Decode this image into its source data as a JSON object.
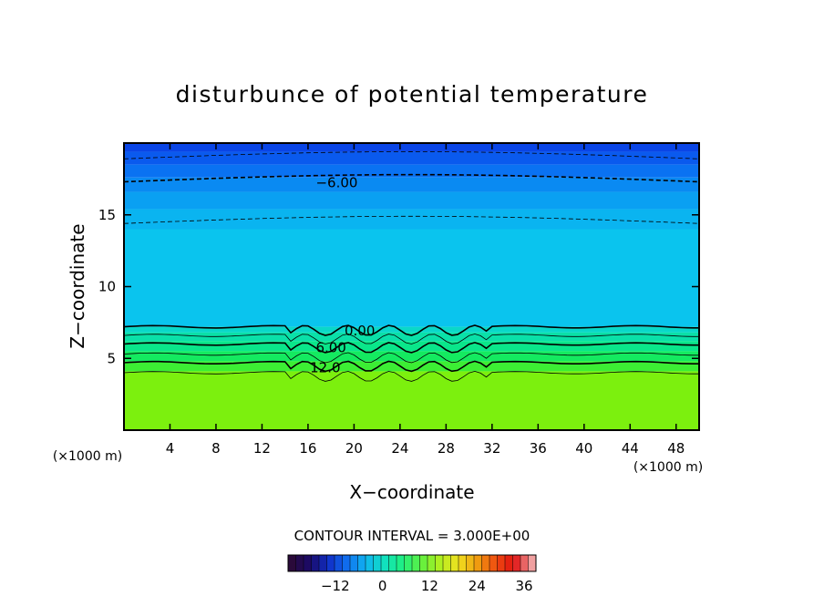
{
  "chart_data": {
    "type": "heatmap",
    "title": "disturbunce of potential temperature",
    "xlabel": "X−coordinate",
    "ylabel": "Z−coordinate",
    "x_unit_left": "(×1000 m)",
    "x_unit_right": "(×1000 m)",
    "xlim": [
      0,
      50
    ],
    "ylim": [
      0,
      20
    ],
    "x_ticks": [
      "4",
      "8",
      "12",
      "16",
      "20",
      "24",
      "28",
      "32",
      "36",
      "40",
      "44",
      "48"
    ],
    "x_tick_values": [
      4,
      8,
      12,
      16,
      20,
      24,
      28,
      32,
      36,
      40,
      44,
      48
    ],
    "y_ticks": [
      "5",
      "10",
      "15"
    ],
    "y_tick_values": [
      5,
      10,
      15
    ],
    "contour_labels": [
      {
        "text": "−6.00",
        "x": 18.5,
        "z": 17.3
      },
      {
        "text": "0.00",
        "x": 20.5,
        "z": 7.0
      },
      {
        "text": "6.00",
        "x": 18.0,
        "z": 5.8
      },
      {
        "text": "12.0",
        "x": 17.5,
        "z": 4.4
      }
    ],
    "layers": [
      {
        "z_bottom": 19.4,
        "z_top": 20.0,
        "color": "#0a45e6"
      },
      {
        "z_bottom": 18.5,
        "z_top": 19.4,
        "color": "#0a5aee"
      },
      {
        "z_bottom": 17.6,
        "z_top": 18.5,
        "color": "#0a72f2"
      },
      {
        "z_bottom": 16.6,
        "z_top": 17.6,
        "color": "#0a8af2"
      },
      {
        "z_bottom": 15.4,
        "z_top": 16.6,
        "color": "#0aa0f2"
      },
      {
        "z_bottom": 14.0,
        "z_top": 15.4,
        "color": "#0ab4f0"
      },
      {
        "z_bottom": 7.2,
        "z_top": 14.0,
        "color": "#0ac4ee"
      },
      {
        "z_bottom": 6.8,
        "z_top": 7.2,
        "color": "#0ad8c8"
      },
      {
        "z_bottom": 6.2,
        "z_top": 6.8,
        "color": "#0ae0a8"
      },
      {
        "z_bottom": 5.5,
        "z_top": 6.2,
        "color": "#0ae68a"
      },
      {
        "z_bottom": 4.8,
        "z_top": 5.5,
        "color": "#14ea60"
      },
      {
        "z_bottom": 4.1,
        "z_top": 4.8,
        "color": "#3cee34"
      },
      {
        "z_bottom": 0.0,
        "z_top": 4.1,
        "color": "#7cf00e"
      }
    ],
    "contour_levels_z": [
      {
        "z": 18.9,
        "style": "dashed",
        "width": 0.8
      },
      {
        "z": 17.3,
        "style": "dashed",
        "width": 1.6
      },
      {
        "z": 14.4,
        "style": "dashed",
        "width": 0.8
      },
      {
        "z": 7.2,
        "style": "solid",
        "width": 1.6
      },
      {
        "z": 6.6,
        "style": "solid",
        "width": 0.8
      },
      {
        "z": 6.0,
        "style": "solid",
        "width": 1.6
      },
      {
        "z": 5.3,
        "style": "solid",
        "width": 0.8
      },
      {
        "z": 4.7,
        "style": "solid",
        "width": 1.6
      },
      {
        "z": 4.0,
        "style": "solid",
        "width": 0.8
      }
    ],
    "contour_interval_text": "CONTOUR INTERVAL = 3.000E+00",
    "colorbar": {
      "range": [
        -24,
        39
      ],
      "ticks": [
        "−12",
        "0",
        "12",
        "24",
        "36"
      ],
      "tick_values": [
        -12,
        0,
        12,
        24,
        36
      ]
    },
    "grid": false
  }
}
